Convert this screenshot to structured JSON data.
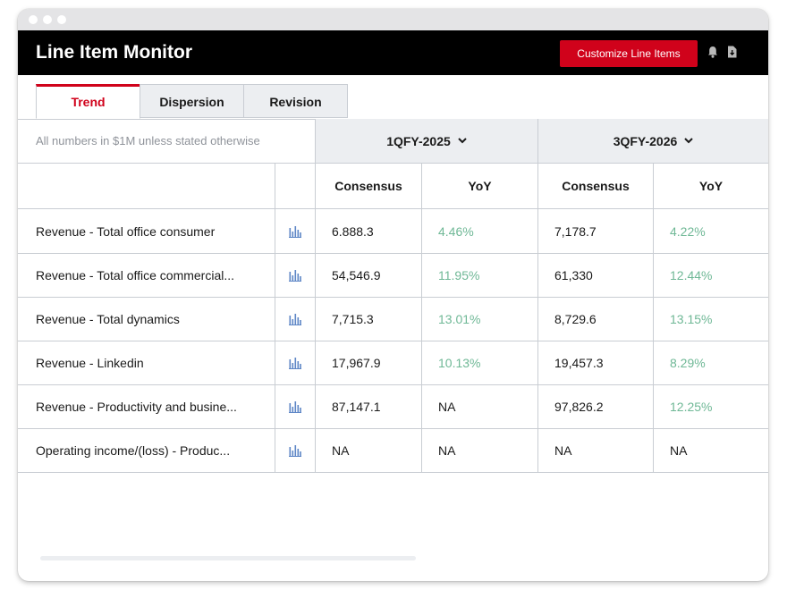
{
  "app": {
    "title": "Line Item Monitor"
  },
  "toolbar": {
    "customize_label": "Customize Line Items"
  },
  "tabs": [
    {
      "label": "Trend",
      "active": true
    },
    {
      "label": "Dispersion",
      "active": false
    },
    {
      "label": "Revision",
      "active": false
    }
  ],
  "table": {
    "note": "All numbers in $1M unless stated otherwise",
    "periods": [
      {
        "label": "1QFY-2025"
      },
      {
        "label": "3QFY-2026"
      }
    ],
    "subheaders": [
      "Consensus",
      "YoY",
      "Consensus",
      "YoY"
    ],
    "rows": [
      {
        "label": "Revenue - Total office consumer",
        "c1": "6.888.3",
        "y1": "4.46%",
        "y1_pos": true,
        "c2": "7,178.7",
        "y2": "4.22%",
        "y2_pos": true
      },
      {
        "label": "Revenue - Total office commercial...",
        "c1": "54,546.9",
        "y1": "11.95%",
        "y1_pos": true,
        "c2": "61,330",
        "y2": "12.44%",
        "y2_pos": true
      },
      {
        "label": "Revenue - Total dynamics",
        "c1": "7,715.3",
        "y1": "13.01%",
        "y1_pos": true,
        "c2": "8,729.6",
        "y2": "13.15%",
        "y2_pos": true
      },
      {
        "label": "Revenue - Linkedin",
        "c1": "17,967.9",
        "y1": "10.13%",
        "y1_pos": true,
        "c2": "19,457.3",
        "y2": "8.29%",
        "y2_pos": true
      },
      {
        "label": "Revenue - Productivity and busine...",
        "c1": "87,147.1",
        "y1": "NA",
        "y1_pos": false,
        "c2": "97,826.2",
        "y2": "12.25%",
        "y2_pos": true
      },
      {
        "label": "Operating income/(loss) - Produc...",
        "c1": "NA",
        "y1": "NA",
        "y1_pos": false,
        "c2": "NA",
        "y2": "NA",
        "y2_pos": false
      }
    ]
  },
  "icons": {
    "header": [
      "bell-icon",
      "export-file-icon"
    ],
    "row": "bar-chart-icon",
    "period_toggle": "chevron-down-icon"
  },
  "colors": {
    "accent": "#d0021b",
    "positive": "#6fb896",
    "header_bg": "#000000"
  }
}
